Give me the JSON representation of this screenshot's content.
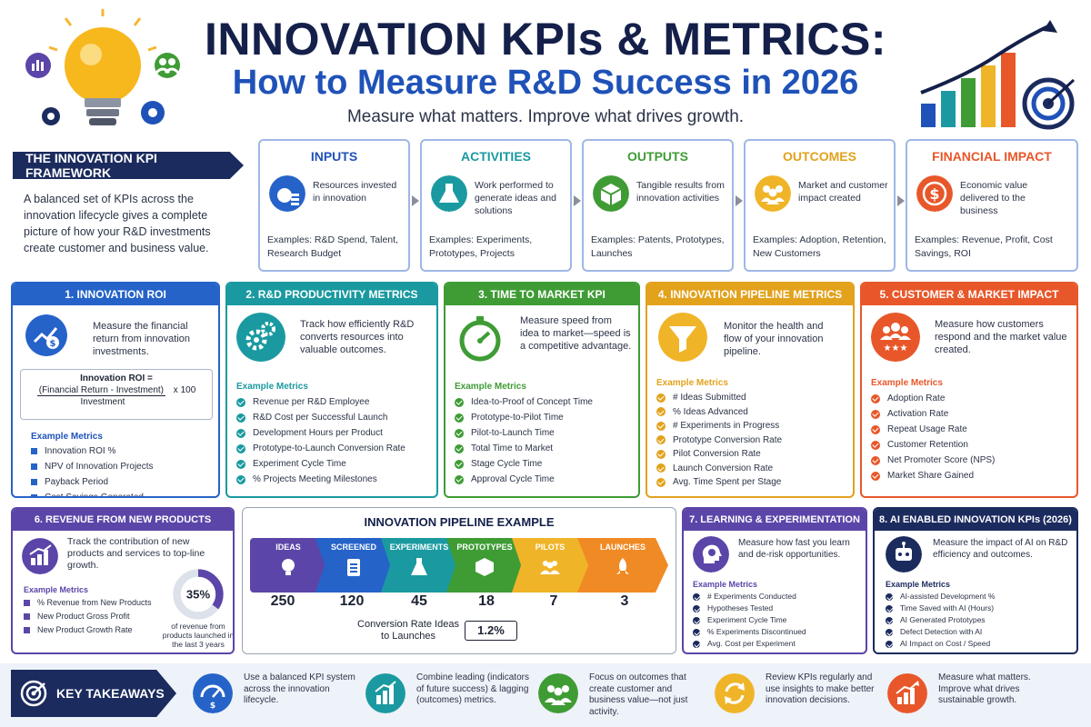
{
  "header": {
    "title_line1": "INNOVATION KPIs & METRICS:",
    "title_line2": "How to Measure R&D Success in 2026",
    "tagline": "Measure what matters. Improve what drives growth."
  },
  "colors": {
    "navy": "#1b2b5e",
    "blue": "#2563c9",
    "teal": "#1a9aa0",
    "green": "#3f9c35",
    "gold": "#e2a21c",
    "orange": "#e8572a",
    "purple": "#5b45a8"
  },
  "framework": {
    "banner": "THE INNOVATION KPI FRAMEWORK",
    "description": "A balanced set of KPIs across the innovation lifecycle gives a complete picture of how your R&D investments create customer and business value.",
    "stages": [
      {
        "title": "INPUTS",
        "icon": "money-bag-icon",
        "text": "Resources invested in innovation",
        "examples": "Examples: R&D Spend, Talent, Research Budget"
      },
      {
        "title": "ACTIVITIES",
        "icon": "flask-icon",
        "text": "Work performed to generate ideas and solutions",
        "examples": "Examples: Experiments, Prototypes, Projects"
      },
      {
        "title": "OUTPUTS",
        "icon": "box-icon",
        "text": "Tangible results from innovation activities",
        "examples": "Examples: Patents, Prototypes, Launches"
      },
      {
        "title": "OUTCOMES",
        "icon": "people-icon",
        "text": "Market and customer impact created",
        "examples": "Examples: Adoption, Retention, New Customers"
      },
      {
        "title": "FINANCIAL IMPACT",
        "icon": "dollar-icon",
        "text": "Economic value delivered to the business",
        "examples": "Examples: Revenue, Profit, Cost Savings, ROI"
      }
    ]
  },
  "sections": {
    "roi": {
      "title": "1. INNOVATION ROI",
      "desc": "Measure the financial return from innovation investments.",
      "formula_title": "Innovation ROI =",
      "formula_num": "(Financial Return - Investment)",
      "formula_mult": "x 100",
      "formula_den": "Investment",
      "ex_title": "Example Metrics",
      "metrics": [
        "Innovation ROI %",
        "NPV of Innovation Projects",
        "Payback Period",
        "Cost Savings Generated"
      ]
    },
    "productivity": {
      "title": "2. R&D PRODUCTIVITY METRICS",
      "desc": "Track how efficiently R&D converts resources into valuable outcomes.",
      "ex_title": "Example Metrics",
      "metrics": [
        "Revenue per R&D Employee",
        "R&D Cost per Successful Launch",
        "Development Hours per Product",
        "Prototype-to-Launch Conversion Rate",
        "Experiment Cycle Time",
        "% Projects Meeting Milestones"
      ]
    },
    "ttm": {
      "title": "3. TIME TO MARKET KPI",
      "desc": "Measure speed from idea to market—speed is a competitive advantage.",
      "ex_title": "Example Metrics",
      "metrics": [
        "Idea-to-Proof of Concept Time",
        "Prototype-to-Pilot Time",
        "Pilot-to-Launch Time",
        "Total Time to Market",
        "Stage Cycle Time",
        "Approval Cycle Time"
      ]
    },
    "pipeline": {
      "title": "4. INNOVATION PIPELINE METRICS",
      "desc": "Monitor the health and flow of your innovation pipeline.",
      "ex_title": "Example Metrics",
      "metrics": [
        "# Ideas Submitted",
        "% Ideas Advanced",
        "# Experiments in Progress",
        "Prototype Conversion Rate",
        "Pilot Conversion Rate",
        "Launch Conversion Rate",
        "Avg. Time Spent per Stage"
      ]
    },
    "customer": {
      "title": "5. CUSTOMER & MARKET IMPACT",
      "desc": "Measure how customers respond and the market value created.",
      "ex_title": "Example Metrics",
      "metrics": [
        "Adoption Rate",
        "Activation Rate",
        "Repeat Usage Rate",
        "Customer Retention",
        "Net Promoter Score (NPS)",
        "Market Share Gained"
      ]
    },
    "revenue": {
      "title": "6. REVENUE FROM NEW PRODUCTS",
      "desc": "Track the contribution of new products and services to top-line growth.",
      "ex_title": "Example Metrics",
      "metrics": [
        "% Revenue from New Products",
        "New Product Gross Profit",
        "New Product Growth Rate"
      ],
      "donut_value": "35%",
      "donut_fraction": 0.35,
      "donut_caption": "of revenue from products launched in the last 3 years"
    },
    "learning": {
      "title": "7. LEARNING & EXPERIMENTATION",
      "desc": "Measure how fast you learn and de-risk opportunities.",
      "ex_title": "Example Metrics",
      "metrics": [
        "# Experiments Conducted",
        "Hypotheses Tested",
        "Experiment Cycle Time",
        "% Experiments Discontinued",
        "Avg. Cost per Experiment"
      ]
    },
    "ai": {
      "title": "8. AI ENABLED INNOVATION KPIs (2026)",
      "desc": "Measure the impact of AI on R&D efficiency and outcomes.",
      "ex_title": "Example Metrics",
      "metrics": [
        "AI-assisted Development %",
        "Time Saved with AI (Hours)",
        "AI Generated Prototypes",
        "Defect Detection with AI",
        "AI Impact on Cost / Speed"
      ]
    }
  },
  "pipeline_example": {
    "title": "INNOVATION PIPELINE EXAMPLE",
    "stages": [
      {
        "label": "IDEAS",
        "value": "250",
        "color": "#5b45a8"
      },
      {
        "label": "SCREENED",
        "value": "120",
        "color": "#2563c9"
      },
      {
        "label": "EXPERIMENTS",
        "value": "45",
        "color": "#1a9aa0"
      },
      {
        "label": "PROTOTYPES",
        "value": "18",
        "color": "#3f9c35"
      },
      {
        "label": "PILOTS",
        "value": "7",
        "color": "#f0b428"
      },
      {
        "label": "LAUNCHES",
        "value": "3",
        "color": "#f08a24"
      }
    ],
    "conversion_label": "Conversion Rate Ideas to Launches",
    "conversion_value": "1.2%"
  },
  "takeaways": {
    "banner": "KEY TAKEAWAYS",
    "items": [
      {
        "icon": "gauge-dollar-icon",
        "text": "Use a balanced KPI system across the innovation lifecycle."
      },
      {
        "icon": "chart-bars-icon",
        "text": "Combine leading (indicators of future success) & lagging (outcomes) metrics."
      },
      {
        "icon": "people-icon",
        "text": "Focus on outcomes that create customer and business value—not just activity."
      },
      {
        "icon": "refresh-icon",
        "text": "Review KPIs regularly and use insights to make better innovation decisions."
      },
      {
        "icon": "growth-chart-icon",
        "text": "Measure what matters. Improve what drives sustainable growth."
      }
    ]
  }
}
